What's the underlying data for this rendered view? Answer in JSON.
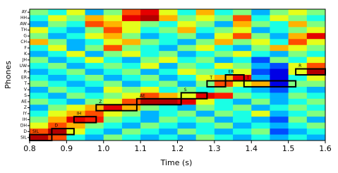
{
  "chart_data": {
    "type": "heatmap",
    "xlabel": "Time (s)",
    "ylabel": "Phones",
    "colormap": "jet",
    "xlim": [
      0.8,
      1.6
    ],
    "xticks": [
      0.8,
      0.9,
      {
        "value": 1,
        "label": "1.0"
      },
      1.1,
      1.2,
      1.3,
      1.4,
      1.5,
      1.6
    ],
    "categories": [
      "AY",
      "HH",
      "AW",
      "TH",
      "G",
      "CH",
      "F",
      "K",
      "JH",
      "UW",
      "R",
      "ER",
      "T",
      "V",
      "S",
      "AE",
      "Z",
      "IY",
      "IH",
      "DH",
      "D",
      "SIL"
    ],
    "matrix": [
      [
        0.5,
        0.4,
        0.6,
        0.3,
        0.5,
        0.8,
        0.9,
        0.6,
        0.4,
        0.7,
        0.4,
        0.5,
        0.3,
        0.5,
        0.6,
        0.5
      ],
      [
        0.4,
        0.6,
        0.5,
        0.7,
        0.6,
        0.9,
        0.95,
        0.7,
        0.5,
        0.6,
        0.5,
        0.8,
        0.4,
        0.6,
        0.5,
        0.4
      ],
      [
        0.3,
        0.5,
        0.4,
        0.8,
        0.7,
        0.6,
        0.5,
        0.4,
        0.6,
        0.5,
        0.3,
        0.7,
        0.5,
        0.4,
        0.7,
        0.5
      ],
      [
        0.6,
        0.4,
        0.3,
        0.5,
        0.8,
        0.6,
        0.4,
        0.5,
        0.7,
        0.4,
        0.5,
        0.6,
        0.3,
        0.4,
        0.5,
        0.6
      ],
      [
        0.5,
        0.3,
        0.4,
        0.6,
        0.7,
        0.5,
        0.3,
        0.4,
        0.5,
        0.3,
        0.6,
        0.8,
        0.5,
        0.3,
        0.7,
        0.9
      ],
      [
        0.7,
        0.5,
        0.3,
        0.4,
        0.6,
        0.7,
        0.5,
        0.4,
        0.3,
        0.5,
        0.7,
        0.5,
        0.6,
        0.4,
        0.8,
        0.6
      ],
      [
        0.4,
        0.6,
        0.3,
        0.5,
        0.8,
        0.5,
        0.4,
        0.3,
        0.5,
        0.6,
        0.4,
        0.3,
        0.5,
        0.7,
        0.6,
        0.5
      ],
      [
        0.3,
        0.4,
        0.6,
        0.3,
        0.5,
        0.6,
        0.4,
        0.5,
        0.3,
        0.4,
        0.5,
        0.6,
        0.4,
        0.3,
        0.5,
        0.4
      ],
      [
        0.5,
        0.3,
        0.4,
        0.6,
        0.4,
        0.3,
        0.5,
        0.6,
        0.4,
        0.5,
        0.3,
        0.4,
        0.2,
        0.5,
        0.4,
        0.6
      ],
      [
        0.4,
        0.5,
        0.3,
        0.4,
        0.5,
        0.4,
        0.6,
        0.3,
        0.5,
        0.4,
        0.6,
        0.5,
        0.3,
        0.2,
        0.6,
        0.8
      ],
      [
        0.3,
        0.4,
        0.5,
        0.3,
        0.4,
        0.5,
        0.3,
        0.4,
        0.6,
        0.5,
        0.4,
        0.6,
        0.2,
        0.1,
        0.6,
        0.95
      ],
      [
        0.4,
        0.3,
        0.4,
        0.5,
        0.3,
        0.4,
        0.5,
        0.3,
        0.4,
        0.6,
        0.7,
        0.9,
        0.3,
        0.1,
        0.4,
        0.6
      ],
      [
        0.5,
        0.4,
        0.3,
        0.4,
        0.5,
        0.3,
        0.4,
        0.5,
        0.3,
        0.5,
        0.8,
        0.6,
        0.7,
        0.1,
        0.5,
        0.5
      ],
      [
        0.3,
        0.5,
        0.4,
        0.3,
        0.6,
        0.5,
        0.6,
        0.4,
        0.5,
        0.4,
        0.5,
        0.4,
        0.3,
        0.2,
        0.4,
        0.3
      ],
      [
        0.4,
        0.3,
        0.5,
        0.4,
        0.5,
        0.6,
        0.8,
        0.7,
        0.6,
        0.9,
        0.85,
        0.5,
        0.4,
        0.3,
        0.5,
        0.4
      ],
      [
        0.5,
        0.4,
        0.3,
        0.5,
        0.6,
        0.8,
        0.95,
        0.95,
        0.9,
        0.6,
        0.4,
        0.3,
        0.5,
        0.3,
        0.4,
        0.5
      ],
      [
        0.3,
        0.5,
        0.6,
        0.7,
        0.9,
        0.7,
        0.5,
        0.4,
        0.3,
        0.5,
        0.4,
        0.5,
        0.3,
        0.4,
        0.5,
        0.4
      ],
      [
        0.4,
        0.6,
        0.7,
        0.8,
        0.6,
        0.5,
        0.3,
        0.4,
        0.5,
        0.3,
        0.5,
        0.4,
        0.6,
        0.3,
        0.4,
        0.5
      ],
      [
        0.5,
        0.7,
        0.9,
        0.85,
        0.5,
        0.4,
        0.3,
        0.5,
        0.4,
        0.5,
        0.3,
        0.4,
        0.3,
        0.2,
        0.5,
        0.3
      ],
      [
        0.6,
        0.8,
        0.7,
        0.5,
        0.4,
        0.3,
        0.5,
        0.4,
        0.3,
        0.4,
        0.5,
        0.3,
        0.4,
        0.3,
        0.4,
        0.5
      ],
      [
        0.8,
        0.95,
        0.6,
        0.4,
        0.3,
        0.5,
        0.4,
        0.3,
        0.5,
        0.4,
        0.3,
        0.4,
        0.5,
        0.2,
        0.3,
        0.4
      ],
      [
        0.95,
        0.8,
        0.4,
        0.3,
        0.5,
        0.4,
        0.3,
        0.4,
        0.3,
        0.5,
        0.4,
        0.3,
        0.4,
        0.3,
        0.4,
        0.3
      ]
    ],
    "segments": [
      {
        "label": "SIL",
        "start": 0.8,
        "end": 0.86
      },
      {
        "label": "D",
        "start": 0.86,
        "end": 0.92
      },
      {
        "label": "IH",
        "start": 0.92,
        "end": 0.98
      },
      {
        "label": "Z",
        "start": 0.98,
        "end": 1.09
      },
      {
        "label": "AE",
        "start": 1.09,
        "end": 1.21
      },
      {
        "label": "S",
        "start": 1.21,
        "end": 1.28
      },
      {
        "label": "T",
        "start": 1.28,
        "end": 1.33
      },
      {
        "label": "ER",
        "start": 1.33,
        "end": 1.38
      },
      {
        "label": "T",
        "start": 1.38,
        "end": 1.52
      },
      {
        "label": "R",
        "start": 1.52,
        "end": 1.6
      }
    ]
  }
}
